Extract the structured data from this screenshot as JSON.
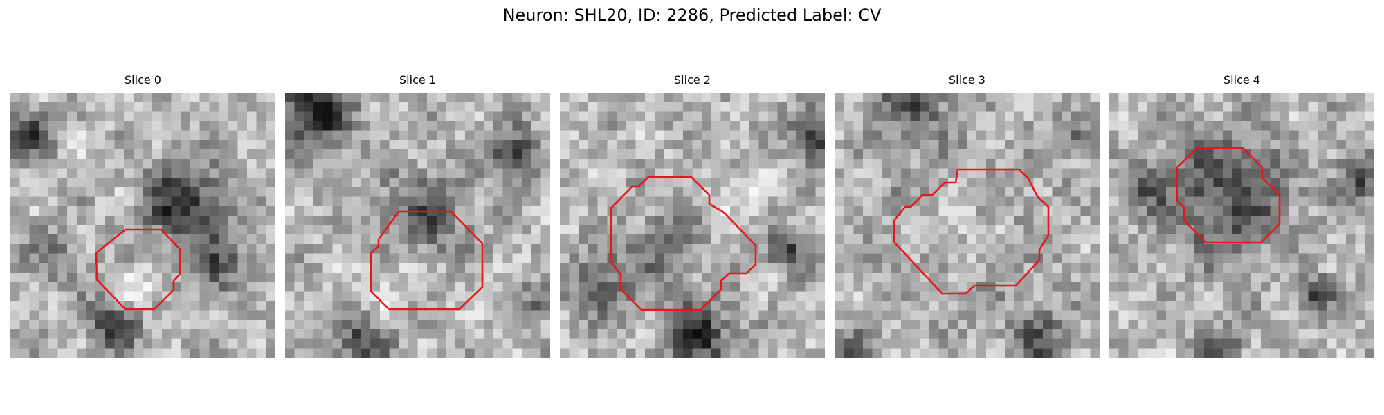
{
  "figure": {
    "title": "Neuron: SHL20, ID: 2286, Predicted Label: CV",
    "contour_color": "#e8141e"
  },
  "panels": [
    {
      "title": "Slice 0"
    },
    {
      "title": "Slice 1"
    },
    {
      "title": "Slice 2"
    },
    {
      "title": "Slice 3"
    },
    {
      "title": "Slice 4"
    }
  ]
}
